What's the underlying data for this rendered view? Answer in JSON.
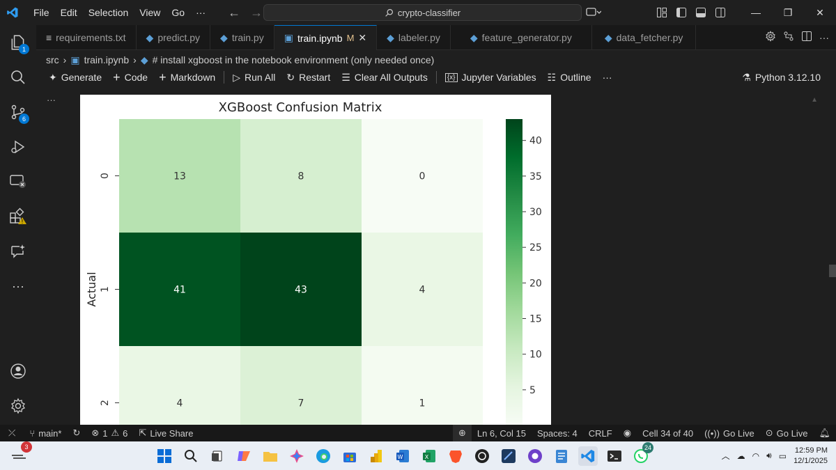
{
  "window": {
    "menu": [
      "File",
      "Edit",
      "Selection",
      "View",
      "Go",
      "···"
    ],
    "search_text": "crypto-classifier"
  },
  "activity_bar": {
    "explorer_badge": "1",
    "source_control_badge": "6"
  },
  "tabs": [
    {
      "label": "requirements.txt",
      "icon": "list-icon",
      "active": false
    },
    {
      "label": "predict.py",
      "icon": "python-icon",
      "active": false
    },
    {
      "label": "train.py",
      "icon": "python-icon",
      "active": false
    },
    {
      "label": "train.ipynb",
      "icon": "notebook-icon",
      "active": true,
      "modified": "M"
    },
    {
      "label": "labeler.py",
      "icon": "python-icon",
      "active": false
    },
    {
      "label": "feature_generator.py",
      "icon": "python-icon",
      "active": false
    },
    {
      "label": "data_fetcher.py",
      "icon": "python-icon",
      "active": false
    }
  ],
  "breadcrumb": {
    "folder": "src",
    "file": "train.ipynb",
    "cell": "# install xgboost in the notebook environment (only needed once)"
  },
  "notebook_toolbar": {
    "generate": "Generate",
    "code": "Code",
    "markdown": "Markdown",
    "run_all": "Run All",
    "restart": "Restart",
    "clear_outputs": "Clear All Outputs",
    "variables": "Jupyter Variables",
    "outline": "Outline",
    "more": "···",
    "kernel": "Python 3.12.10"
  },
  "cell_menu": "···",
  "chart_data": {
    "type": "heatmap",
    "title": "XGBoost Confusion Matrix",
    "ylabel": "Actual",
    "xlabel": "",
    "row_labels": [
      "0",
      "1",
      "2"
    ],
    "col_labels": [
      "",
      "",
      ""
    ],
    "values": [
      [
        13,
        8,
        0
      ],
      [
        41,
        43,
        4
      ],
      [
        4,
        7,
        1
      ]
    ],
    "colormap": "Greens",
    "colorbar_ticks": [
      5,
      10,
      15,
      20,
      25,
      30,
      35,
      40
    ],
    "colorbar_range": [
      0,
      43
    ]
  },
  "status_bar": {
    "branch": "main*",
    "errors": "1",
    "warnings": "6",
    "live_share": "Live Share",
    "position": "Ln 6, Col 15",
    "spaces": "Spaces: 4",
    "eol": "CRLF",
    "cell": "Cell 34 of 40",
    "go_live_1": "Go Live",
    "go_live_2": "Go Live"
  },
  "taskbar": {
    "widget_badge": "3",
    "whatsapp_badge": "24",
    "time": "12:59 PM",
    "date": "12/1/2025"
  },
  "colors": {
    "accent": "#0078d4",
    "editor_bg": "#1f1f1f",
    "modified": "#e2c08d"
  }
}
